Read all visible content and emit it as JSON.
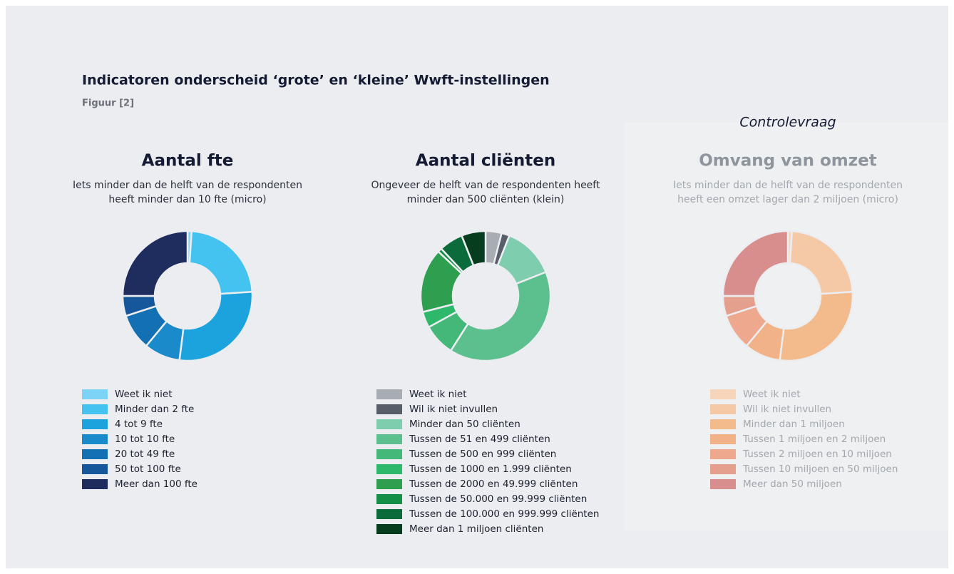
{
  "header": {
    "title": "Indicatoren onderscheid ‘grote’ en ‘kleine’ Wwft-instellingen",
    "figure": "Figuur [2]"
  },
  "chart_data": [
    {
      "type": "pie",
      "title": "Aantal fte",
      "subtitle": [
        "Iets minder dan de helft van de respondenten",
        "heeft minder dan 10 fte (micro)"
      ],
      "categories": [
        "Weet ik niet",
        "Minder dan 2 fte",
        "4 tot 9 fte",
        "10 tot 10 fte",
        "20 tot 49 fte",
        "50 tot 100 fte",
        "Meer dan 100 fte"
      ],
      "values": [
        1,
        23,
        28,
        9,
        9,
        5,
        25
      ],
      "colors": [
        "#7dd3f5",
        "#45c3f0",
        "#1ca3dd",
        "#1a8acb",
        "#1270b3",
        "#15579a",
        "#1f2d5e"
      ]
    },
    {
      "type": "pie",
      "title": "Aantal cliënten",
      "subtitle": [
        "Ongeveer de helft van de respondenten heeft",
        "minder dan 500 cliënten (klein)"
      ],
      "categories": [
        "Weet ik niet",
        "Wil ik niet invullen",
        "Minder dan 50 cliënten",
        "Tussen de 51 en 499 cliënten",
        "Tussen de 500 en 999 cliënten",
        "Tussen de 1000 en 1.999 cliënten",
        "Tussen de 2000 en 49.999 cliënten",
        "Tussen de 50.000 en 99.999 cliënten",
        "Tussen de 100.000 en 999.999 cliënten",
        "Meer dan 1 miljoen cliënten"
      ],
      "values": [
        4,
        2,
        13,
        40,
        8,
        4,
        16,
        1,
        6,
        6
      ],
      "colors": [
        "#a8adb3",
        "#555e69",
        "#7fcdaf",
        "#5bbf8e",
        "#43b878",
        "#2db86b",
        "#2e9e4f",
        "#138f48",
        "#0b6b3a",
        "#063d1e"
      ]
    },
    {
      "type": "pie",
      "annotation": "Controlevraag",
      "title": "Omvang van omzet",
      "subtitle": [
        "Iets minder dan de helft van de respondenten",
        "heeft een omzet lager dan 2 miljoen (micro)"
      ],
      "categories": [
        "Weet ik niet",
        "Wil ik niet invullen",
        "Minder dan 1 miljoen",
        "Tussen 1 miljoen en 2 miljoen",
        "Tussen 2 miljoen en 10 miljoen",
        "Tussen 10 miljoen en 50 miljoen",
        "Meer dan 50 miljoen"
      ],
      "values": [
        1,
        23,
        28,
        9,
        9,
        5,
        25
      ],
      "colors": [
        "#f6d5bb",
        "#f5c9a6",
        "#f3bb8c",
        "#f2b287",
        "#eda88d",
        "#e4a08c",
        "#d88e8c"
      ]
    }
  ]
}
